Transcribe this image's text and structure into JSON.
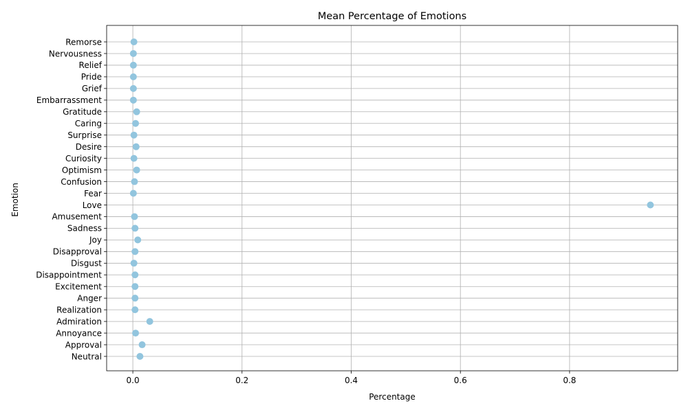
{
  "chart_data": {
    "type": "scatter",
    "title": "Mean Percentage of Emotions",
    "xlabel": "Percentage",
    "ylabel": "Emotion",
    "xlim": [
      -0.048,
      0.998
    ],
    "x_ticks": [
      0.0,
      0.2,
      0.4,
      0.6,
      0.8
    ],
    "x_tick_labels": [
      "0.0",
      "0.2",
      "0.4",
      "0.6",
      "0.8"
    ],
    "grid": true,
    "marker_color": "#92c5de",
    "categories": [
      "Neutral",
      "Approval",
      "Annoyance",
      "Admiration",
      "Realization",
      "Anger",
      "Excitement",
      "Disappointment",
      "Disgust",
      "Disapproval",
      "Joy",
      "Sadness",
      "Amusement",
      "Love",
      "Fear",
      "Confusion",
      "Optimism",
      "Curiosity",
      "Desire",
      "Surprise",
      "Caring",
      "Gratitude",
      "Embarrassment",
      "Grief",
      "Pride",
      "Relief",
      "Nervousness",
      "Remorse"
    ],
    "values": [
      0.013,
      0.017,
      0.005,
      0.031,
      0.004,
      0.004,
      0.004,
      0.004,
      0.002,
      0.004,
      0.009,
      0.004,
      0.003,
      0.948,
      0.001,
      0.003,
      0.007,
      0.002,
      0.006,
      0.002,
      0.005,
      0.007,
      0.001,
      0.001,
      0.001,
      0.001,
      0.001,
      0.002
    ]
  }
}
